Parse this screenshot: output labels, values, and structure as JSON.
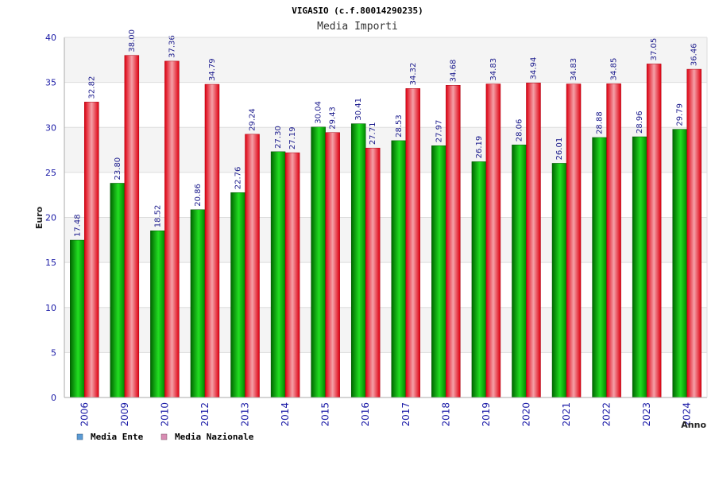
{
  "chart_data": {
    "type": "bar",
    "title": "VIGASIO (c.f.80014290235)",
    "subtitle": "Media Importi",
    "xlabel": "Anno",
    "ylabel": "Euro",
    "ylim": [
      0,
      40
    ],
    "yticks": [
      0,
      5,
      10,
      15,
      20,
      25,
      30,
      35,
      40
    ],
    "grid": true,
    "legend_position": "bottom-left",
    "categories": [
      "2006",
      "2009",
      "2010",
      "2012",
      "2013",
      "2014",
      "2015",
      "2016",
      "2017",
      "2018",
      "2019",
      "2020",
      "2021",
      "2022",
      "2023",
      "2024"
    ],
    "series": [
      {
        "name": "Media Ente",
        "legend_color": "#5b9bd5",
        "bar_color": "#00aa00",
        "values": [
          17.48,
          23.8,
          18.52,
          20.86,
          22.76,
          27.3,
          30.04,
          30.41,
          28.53,
          27.97,
          26.19,
          28.06,
          26.01,
          28.88,
          28.96,
          29.79
        ],
        "labels": [
          "17.48",
          "23.80",
          "18.52",
          "20.86",
          "22.76",
          "27.30",
          "30.04",
          "30.41",
          "28.53",
          "27.97",
          "26.19",
          "28.06",
          "26.01",
          "28.88",
          "28.96",
          "29.79"
        ]
      },
      {
        "name": "Media Nazionale",
        "legend_color": "#d98cb3",
        "bar_color": "#e8141e",
        "values": [
          32.82,
          38.0,
          37.36,
          34.79,
          29.24,
          27.19,
          29.43,
          27.71,
          34.32,
          34.68,
          34.83,
          34.94,
          34.83,
          34.85,
          37.05,
          36.46
        ],
        "labels": [
          "32.82",
          "38.00",
          "37.36",
          "34.79",
          "29.24",
          "27.19",
          "29.43",
          "27.71",
          "34.32",
          "34.68",
          "34.83",
          "34.94",
          "34.83",
          "34.85",
          "37.05",
          "36.46"
        ]
      }
    ]
  }
}
